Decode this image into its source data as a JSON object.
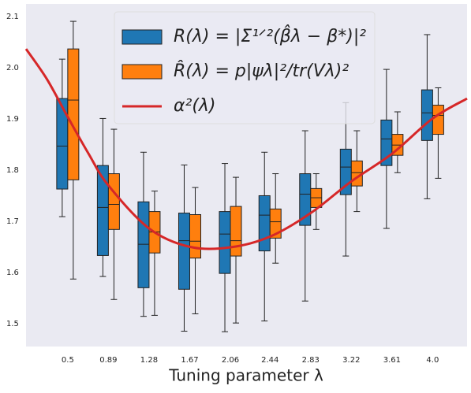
{
  "chart_data": {
    "type": "box",
    "x_label": "Tuning parameter λ",
    "xlim": [
      0.1,
      4.33
    ],
    "xticks": [
      0.5,
      0.89,
      1.28,
      1.67,
      2.06,
      2.44,
      2.83,
      3.22,
      3.61,
      {
        "value": 4.0,
        "label": "4.0"
      }
    ],
    "ylim": [
      1.455,
      2.125
    ],
    "yticks": [
      1.5,
      1.6,
      1.7,
      1.8,
      1.9,
      {
        "value": 2.0,
        "label": "2.0"
      },
      2.1
    ],
    "legend": "upper center",
    "series": [
      {
        "name": "R(λ) = |Σ¹ᐟ²(β̂λ − β*)|²",
        "color": "#1f77b4",
        "offset": -7,
        "whislo": [
          1.709,
          1.592,
          1.514,
          1.485,
          1.484,
          1.505,
          1.544,
          1.632,
          1.686,
          1.744
        ],
        "q1": [
          1.763,
          1.633,
          1.57,
          1.567,
          1.598,
          1.642,
          1.692,
          1.752,
          1.809,
          1.858
        ],
        "med": [
          1.847,
          1.727,
          1.655,
          1.662,
          1.675,
          1.712,
          1.753,
          1.806,
          1.861,
          1.912
        ],
        "q3": [
          1.94,
          1.809,
          1.738,
          1.716,
          1.719,
          1.75,
          1.793,
          1.841,
          1.898,
          1.957
        ],
        "whishi": [
          2.017,
          1.901,
          1.835,
          1.81,
          1.813,
          1.835,
          1.877,
          1.932,
          1.997,
          2.065
        ]
      },
      {
        "name": "R̂(λ) = p|ψλ|²/tr(Vλ)²",
        "color": "#ff7f0e",
        "offset": 7,
        "whislo": [
          1.587,
          1.547,
          1.516,
          1.519,
          1.501,
          1.618,
          1.684,
          1.719,
          1.795,
          1.784
        ],
        "q1": [
          1.781,
          1.684,
          1.638,
          1.628,
          1.632,
          1.667,
          1.727,
          1.769,
          1.829,
          1.87
        ],
        "med": [
          1.937,
          1.733,
          1.679,
          1.661,
          1.662,
          1.699,
          1.746,
          1.795,
          1.849,
          1.907
        ],
        "q3": [
          2.037,
          1.793,
          1.719,
          1.713,
          1.729,
          1.724,
          1.764,
          1.818,
          1.87,
          1.927
        ],
        "whishi": [
          2.091,
          1.88,
          1.759,
          1.766,
          1.786,
          1.793,
          1.793,
          1.877,
          1.914,
          1.961
        ]
      },
      {
        "name": "α²(λ)",
        "color": "#d62728",
        "type": "line",
        "x": [
          0.1,
          0.3,
          0.5,
          0.7,
          0.89,
          1.28,
          1.67,
          2.06,
          2.44,
          2.83,
          3.22,
          3.61,
          4.0,
          4.33
        ],
        "values": [
          2.037,
          1.978,
          1.904,
          1.832,
          1.77,
          1.686,
          1.65,
          1.649,
          1.67,
          1.716,
          1.778,
          1.832,
          1.901,
          1.94
        ]
      }
    ]
  }
}
